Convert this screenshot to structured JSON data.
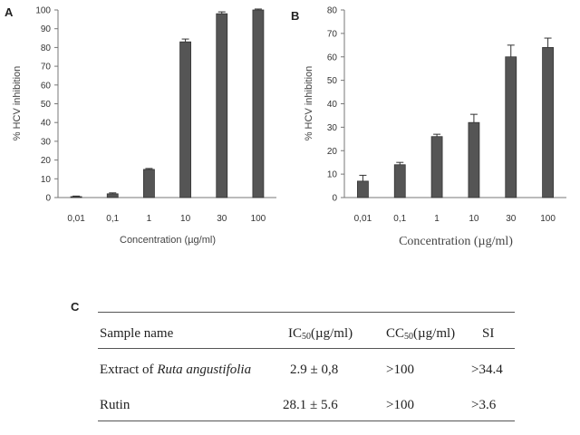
{
  "panels": {
    "a": "A",
    "b": "B",
    "c": "C"
  },
  "chart_data": [
    {
      "type": "bar",
      "panel": "A",
      "categories": [
        "0,01",
        "0,1",
        "1",
        "10",
        "30",
        "100"
      ],
      "values": [
        0.5,
        2,
        15,
        83,
        98,
        100
      ],
      "errors": [
        0.3,
        0.5,
        0.5,
        1.5,
        1,
        0.5
      ],
      "xlabel": "Concentration (µg/ml)",
      "ylabel": "% HCV inhibition",
      "ylim": [
        0,
        100
      ],
      "yticks": [
        0,
        10,
        20,
        30,
        40,
        50,
        60,
        70,
        80,
        90,
        100
      ],
      "grid": false,
      "bar_color": "#555555"
    },
    {
      "type": "bar",
      "panel": "B",
      "categories": [
        "0,01",
        "0,1",
        "1",
        "10",
        "30",
        "100"
      ],
      "values": [
        7,
        14,
        26,
        32,
        60,
        64
      ],
      "errors": [
        2.5,
        1,
        1,
        3.5,
        5,
        4
      ],
      "xlabel": "Concentration (µg/ml)",
      "ylabel": "% HCV inhibition",
      "ylim": [
        0,
        80
      ],
      "yticks": [
        0,
        10,
        20,
        30,
        40,
        50,
        60,
        70,
        80
      ],
      "grid": false,
      "bar_color": "#555555"
    }
  ],
  "table": {
    "columns": {
      "name": "Sample name",
      "ic50_base": "IC",
      "ic50_sub": "50",
      "ic50_unit": "(µg/ml)",
      "cc50_base": "CC",
      "cc50_sub": "50",
      "cc50_unit": "(µg/ml)",
      "si": "SI"
    },
    "rows": [
      {
        "name_prefix": "Extract of ",
        "name_italic": "Ruta angustifolia",
        "ic50": "2.9 ± 0,8",
        "cc50": ">100",
        "si": ">34.4"
      },
      {
        "name_prefix": "Rutin",
        "name_italic": "",
        "ic50": "28.1 ± 5.6",
        "cc50": ">100",
        "si": ">3.6"
      }
    ]
  }
}
